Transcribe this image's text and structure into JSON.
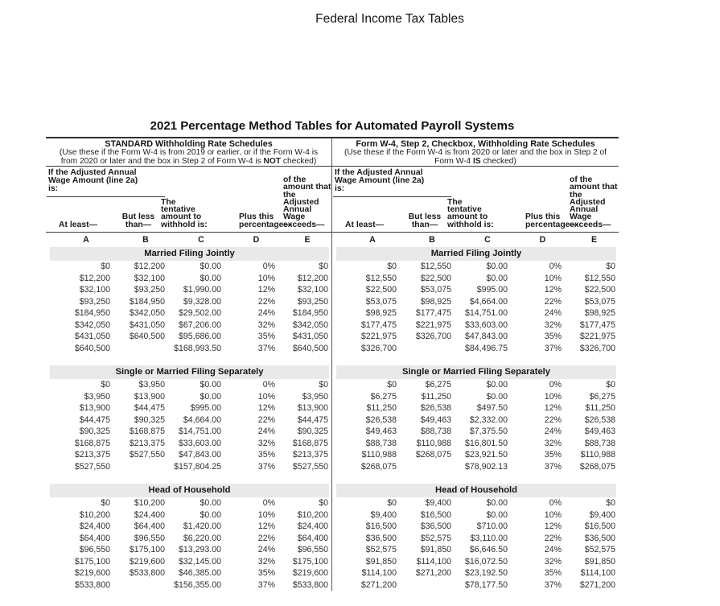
{
  "page_title": "Federal Income Tax Tables",
  "doc_heading": "2021 Percentage Method Tables for Automated Payroll Systems",
  "colors": {
    "band_background": "#e9e9e9",
    "rule_color": "#3a3a3a",
    "text_color": "#303030"
  },
  "column_letters": [
    "A",
    "B",
    "C",
    "D",
    "E"
  ],
  "headers": {
    "wage_group": [
      "If the Adjusted Annual",
      "Wage Amount (line 2a)",
      "is:"
    ],
    "at_least": "At least—",
    "but_less": [
      "But less",
      "than—"
    ],
    "tentative": [
      "The",
      "tentative",
      "amount to",
      "withhold is:"
    ],
    "plus_pct": [
      "Plus this",
      "percentage—"
    ],
    "of_amount": [
      "of the",
      "amount that",
      "the Adjusted",
      "Annual Wage",
      "exceeds—"
    ]
  },
  "schedules": {
    "standard": {
      "title": "STANDARD Withholding Rate Schedules",
      "sub1": "(Use these if the Form W-4 is from 2019 or earlier, or if the Form W-4 is",
      "sub2_pre": "from 2020 or later and the box in Step 2 of Form W-4 is ",
      "sub2_bold": "NOT",
      "sub2_post": " checked)",
      "statuses": [
        {
          "name": "Married Filing Jointly",
          "rows": [
            [
              "$0",
              "$12,200",
              "$0.00",
              "0%",
              "$0"
            ],
            [
              "$12,200",
              "$32,100",
              "$0.00",
              "10%",
              "$12,200"
            ],
            [
              "$32,100",
              "$93,250",
              "$1,990.00",
              "12%",
              "$32,100"
            ],
            [
              "$93,250",
              "$184,950",
              "$9,328.00",
              "22%",
              "$93,250"
            ],
            [
              "$184,950",
              "$342,050",
              "$29,502.00",
              "24%",
              "$184,950"
            ],
            [
              "$342,050",
              "$431,050",
              "$67,206.00",
              "32%",
              "$342,050"
            ],
            [
              "$431,050",
              "$640,500",
              "$95,686.00",
              "35%",
              "$431,050"
            ],
            [
              "$640,500",
              "",
              "$168,993.50",
              "37%",
              "$640,500"
            ]
          ]
        },
        {
          "name": "Single or Married Filing Separately",
          "rows": [
            [
              "$0",
              "$3,950",
              "$0.00",
              "0%",
              "$0"
            ],
            [
              "$3,950",
              "$13,900",
              "$0.00",
              "10%",
              "$3,950"
            ],
            [
              "$13,900",
              "$44,475",
              "$995.00",
              "12%",
              "$13,900"
            ],
            [
              "$44,475",
              "$90,325",
              "$4,664.00",
              "22%",
              "$44,475"
            ],
            [
              "$90,325",
              "$168,875",
              "$14,751.00",
              "24%",
              "$90,325"
            ],
            [
              "$168,875",
              "$213,375",
              "$33,603.00",
              "32%",
              "$168,875"
            ],
            [
              "$213,375",
              "$527,550",
              "$47,843.00",
              "35%",
              "$213,375"
            ],
            [
              "$527,550",
              "",
              "$157,804.25",
              "37%",
              "$527,550"
            ]
          ]
        },
        {
          "name": "Head of Household",
          "rows": [
            [
              "$0",
              "$10,200",
              "$0.00",
              "0%",
              "$0"
            ],
            [
              "$10,200",
              "$24,400",
              "$0.00",
              "10%",
              "$10,200"
            ],
            [
              "$24,400",
              "$64,400",
              "$1,420.00",
              "12%",
              "$24,400"
            ],
            [
              "$64,400",
              "$96,550",
              "$6,220.00",
              "22%",
              "$64,400"
            ],
            [
              "$96,550",
              "$175,100",
              "$13,293.00",
              "24%",
              "$96,550"
            ],
            [
              "$175,100",
              "$219,600",
              "$32,145.00",
              "32%",
              "$175,100"
            ],
            [
              "$219,600",
              "$533,800",
              "$46,385.00",
              "35%",
              "$219,600"
            ],
            [
              "$533,800",
              "",
              "$156,355.00",
              "37%",
              "$533,800"
            ]
          ]
        }
      ]
    },
    "checkbox": {
      "title": "Form W-4, Step 2, Checkbox, Withholding Rate Schedules",
      "sub1": "(Use these if the Form W-4 is from 2020 or later and the box in Step 2 of",
      "sub2_pre": "Form W-4 ",
      "sub2_bold": "IS",
      "sub2_post": " checked)",
      "statuses": [
        {
          "name": "Married Filing Jointly",
          "rows": [
            [
              "$0",
              "$12,550",
              "$0.00",
              "0%",
              "$0"
            ],
            [
              "$12,550",
              "$22,500",
              "$0.00",
              "10%",
              "$12,550"
            ],
            [
              "$22,500",
              "$53,075",
              "$995.00",
              "12%",
              "$22,500"
            ],
            [
              "$53,075",
              "$98,925",
              "$4,664.00",
              "22%",
              "$53,075"
            ],
            [
              "$98,925",
              "$177,475",
              "$14,751.00",
              "24%",
              "$98,925"
            ],
            [
              "$177,475",
              "$221,975",
              "$33,603.00",
              "32%",
              "$177,475"
            ],
            [
              "$221,975",
              "$326,700",
              "$47,843.00",
              "35%",
              "$221,975"
            ],
            [
              "$326,700",
              "",
              "$84,496.75",
              "37%",
              "$326,700"
            ]
          ]
        },
        {
          "name": "Single or Married Filing Separately",
          "rows": [
            [
              "$0",
              "$6,275",
              "$0.00",
              "0%",
              "$0"
            ],
            [
              "$6,275",
              "$11,250",
              "$0.00",
              "10%",
              "$6,275"
            ],
            [
              "$11,250",
              "$26,538",
              "$497.50",
              "12%",
              "$11,250"
            ],
            [
              "$26,538",
              "$49,463",
              "$2,332.00",
              "22%",
              "$26,538"
            ],
            [
              "$49,463",
              "$88,738",
              "$7,375.50",
              "24%",
              "$49,463"
            ],
            [
              "$88,738",
              "$110,988",
              "$16,801.50",
              "32%",
              "$88,738"
            ],
            [
              "$110,988",
              "$268,075",
              "$23,921.50",
              "35%",
              "$110,988"
            ],
            [
              "$268,075",
              "",
              "$78,902.13",
              "37%",
              "$268,075"
            ]
          ]
        },
        {
          "name": "Head of Household",
          "rows": [
            [
              "$0",
              "$9,400",
              "$0.00",
              "0%",
              "$0"
            ],
            [
              "$9,400",
              "$16,500",
              "$0.00",
              "10%",
              "$9,400"
            ],
            [
              "$16,500",
              "$36,500",
              "$710.00",
              "12%",
              "$16,500"
            ],
            [
              "$36,500",
              "$52,575",
              "$3,110.00",
              "22%",
              "$36,500"
            ],
            [
              "$52,575",
              "$91,850",
              "$6,646.50",
              "24%",
              "$52,575"
            ],
            [
              "$91,850",
              "$114,100",
              "$16,072.50",
              "32%",
              "$91,850"
            ],
            [
              "$114,100",
              "$271,200",
              "$23,192.50",
              "35%",
              "$114,100"
            ],
            [
              "$271,200",
              "",
              "$78,177.50",
              "37%",
              "$271,200"
            ]
          ]
        }
      ]
    }
  }
}
